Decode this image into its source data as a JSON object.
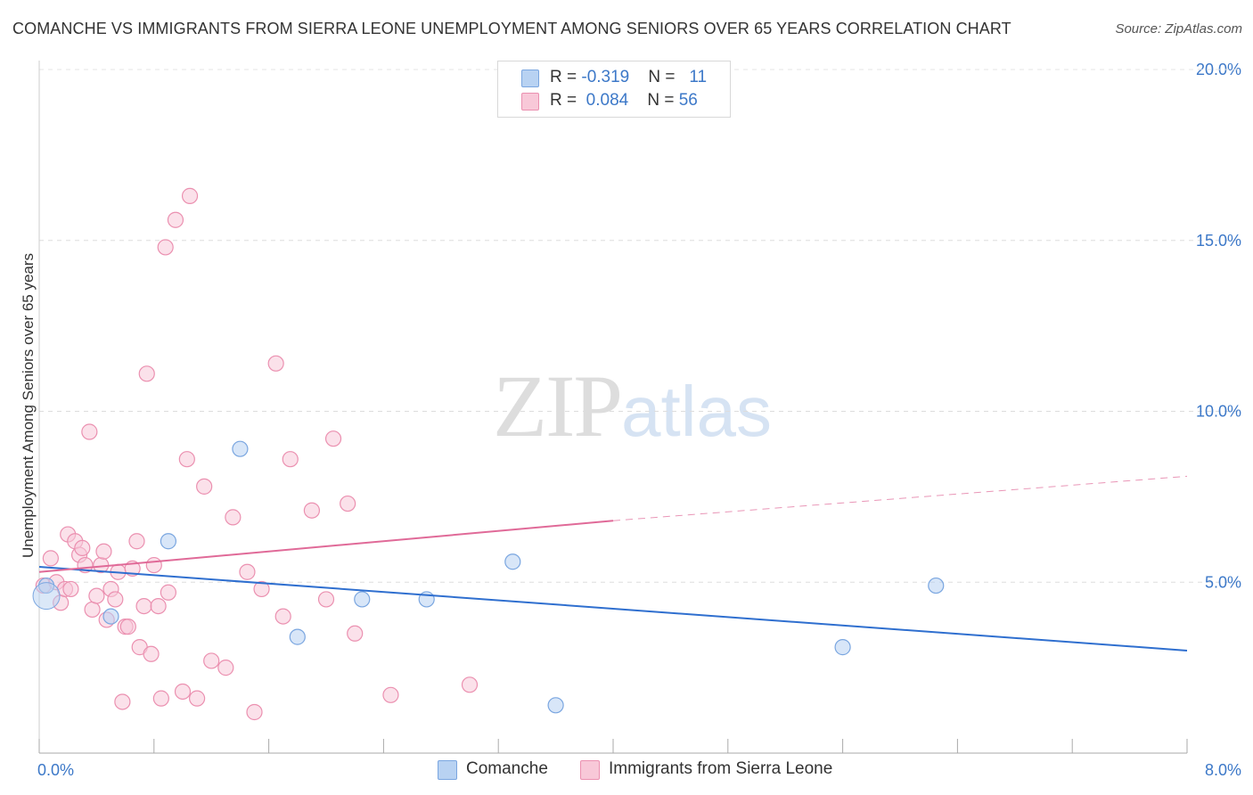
{
  "title": "COMANCHE VS IMMIGRANTS FROM SIERRA LEONE UNEMPLOYMENT AMONG SENIORS OVER 65 YEARS CORRELATION CHART",
  "source": "Source: ZipAtlas.com",
  "watermark": {
    "zip": "ZIP",
    "atlas": "atlas"
  },
  "legend": {
    "rows": [
      {
        "r_label": "R = ",
        "r_value": "-0.319",
        "n_label": "N = ",
        "n_value": "11",
        "color": "#b8d2f2",
        "border": "#7aa6e0"
      },
      {
        "r_label": "R = ",
        "r_value": "0.084",
        "n_label": "N = ",
        "n_value": "56",
        "color": "#f8c8d8",
        "border": "#eb90b0"
      }
    ]
  },
  "bottom_legend": [
    "Comanche",
    "Immigrants from Sierra Leone"
  ],
  "chart_data": {
    "type": "scatter",
    "title": "COMANCHE VS IMMIGRANTS FROM SIERRA LEONE UNEMPLOYMENT AMONG SENIORS OVER 65 YEARS CORRELATION CHART",
    "xlabel": "",
    "ylabel": "Unemployment Among Seniors over 65 years",
    "xlim": [
      0,
      8
    ],
    "ylim": [
      0,
      20
    ],
    "x_tick_labels": [
      "0.0%",
      "8.0%"
    ],
    "y_tick_labels": [
      "5.0%",
      "10.0%",
      "15.0%",
      "20.0%"
    ],
    "y_ticks": [
      5,
      10,
      15,
      20
    ],
    "grid": true,
    "legend_position": "top-center",
    "series": [
      {
        "name": "Comanche",
        "color": "#b8d2f2",
        "stroke": "#7aa6e0",
        "line_color": "#2f6fcf",
        "x": [
          0.05,
          0.9,
          0.5,
          1.4,
          1.8,
          2.25,
          2.7,
          3.3,
          3.6,
          5.6,
          6.25
        ],
        "y": [
          4.9,
          6.2,
          4.0,
          8.9,
          3.4,
          4.5,
          4.5,
          5.6,
          1.4,
          3.1,
          4.9
        ],
        "trend": {
          "x": [
            0,
            8
          ],
          "y": [
            5.45,
            3.0
          ]
        }
      },
      {
        "name": "Immigrants from Sierra Leone",
        "color": "#f8c8d8",
        "stroke": "#eb90b0",
        "line_color": "#e06a98",
        "x": [
          0.03,
          0.08,
          0.12,
          0.15,
          0.18,
          0.2,
          0.22,
          0.25,
          0.28,
          0.3,
          0.32,
          0.35,
          0.37,
          0.4,
          0.43,
          0.45,
          0.47,
          0.5,
          0.53,
          0.55,
          0.58,
          0.6,
          0.62,
          0.65,
          0.68,
          0.7,
          0.73,
          0.75,
          0.78,
          0.8,
          0.83,
          0.85,
          0.88,
          0.9,
          0.95,
          1.0,
          1.03,
          1.05,
          1.1,
          1.15,
          1.2,
          1.3,
          1.35,
          1.45,
          1.5,
          1.55,
          1.65,
          1.7,
          1.75,
          1.9,
          2.0,
          2.05,
          2.15,
          2.2,
          2.45,
          3.0
        ],
        "y": [
          4.9,
          5.7,
          5.0,
          4.4,
          4.8,
          6.4,
          4.8,
          6.2,
          5.8,
          6.0,
          5.5,
          9.4,
          4.2,
          4.6,
          5.5,
          5.9,
          3.9,
          4.8,
          4.5,
          5.3,
          1.5,
          3.7,
          3.7,
          5.4,
          6.2,
          3.1,
          4.3,
          11.1,
          2.9,
          5.5,
          4.3,
          1.6,
          14.8,
          4.7,
          15.6,
          1.8,
          8.6,
          16.3,
          1.6,
          7.8,
          2.7,
          2.5,
          6.9,
          5.3,
          1.2,
          4.8,
          11.4,
          4.0,
          8.6,
          7.1,
          4.5,
          9.2,
          7.3,
          3.5,
          1.7,
          2.0
        ],
        "trend": {
          "x": [
            0,
            4
          ],
          "y": [
            5.3,
            6.8
          ]
        },
        "trend_extension": {
          "x": [
            4,
            8
          ],
          "y": [
            6.8,
            8.1
          ]
        }
      }
    ]
  }
}
